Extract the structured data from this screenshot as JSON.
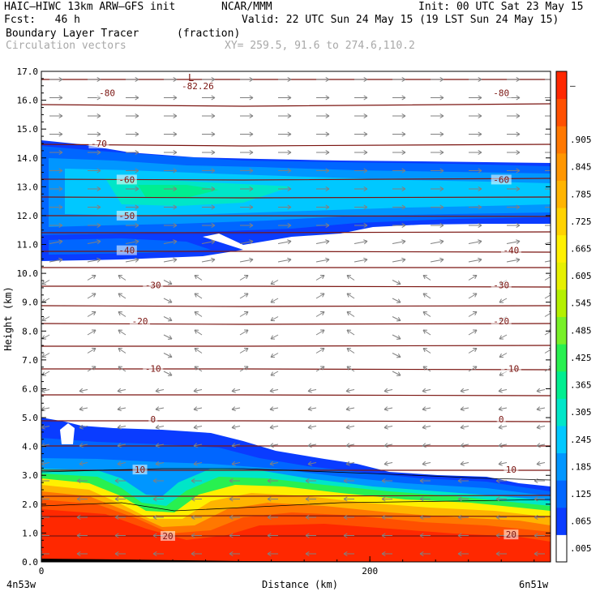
{
  "header": {
    "model": "HAIC–HIWC 13km ARW–GFS init",
    "org": "NCAR/MMM",
    "init": "Init: 00 UTC Sat 23 May 15",
    "fcst": "Fcst:   46 h",
    "valid": "Valid: 22 UTC Sun 24 May 15 (19 LST Sun 24 May 15)",
    "field": "Boundary Layer Tracer",
    "units": "(fraction)",
    "vectors": "Circulation vectors",
    "xy": "XY= 259.5, 91.6 to 274.6,110.2"
  },
  "chart_data": {
    "type": "heatmap",
    "ylabel": "Height (km)",
    "xlabel": "Distance (km)",
    "ylim": [
      0,
      17
    ],
    "xlim": [
      0,
      310
    ],
    "y_ticks": [
      "0.0",
      "1.0",
      "2.0",
      "3.0",
      "4.0",
      "5.0",
      "6.0",
      "7.0",
      "8.0",
      "9.0",
      "10.0",
      "11.0",
      "12.0",
      "13.0",
      "14.0",
      "15.0",
      "16.0",
      "17.0"
    ],
    "x_ticks": [
      {
        "value": 0,
        "label": "0"
      },
      {
        "value": 200,
        "label": "200"
      }
    ],
    "x_end_labels": {
      "left": "4n53w",
      "right": "6n51w"
    },
    "colorbar": {
      "colors": [
        "#ffffff",
        "#0a3cff",
        "#0066ff",
        "#0096ff",
        "#00c8ff",
        "#00e6c8",
        "#00ee90",
        "#28f050",
        "#78f028",
        "#b4f000",
        "#e6f000",
        "#fff000",
        "#ffd200",
        "#ffb400",
        "#ff9600",
        "#ff7800",
        "#ff5000",
        "#ff2800"
      ],
      "labels": [
        ".005",
        ".065",
        ".125",
        ".185",
        ".245",
        ".305",
        ".365",
        ".425",
        ".485",
        ".545",
        ".605",
        ".665",
        ".725",
        ".785",
        ".845",
        ".905",
        "",
        "–"
      ]
    },
    "isotherm_labels": [
      {
        "x": 40,
        "y": 16.25,
        "text": "-80"
      },
      {
        "x": 280,
        "y": 16.25,
        "text": "-80"
      },
      {
        "x": 35,
        "y": 14.5,
        "text": "-70"
      },
      {
        "x": 52,
        "y": 13.25,
        "text": "-60"
      },
      {
        "x": 280,
        "y": 13.25,
        "text": "-60"
      },
      {
        "x": 52,
        "y": 12.0,
        "text": "-50"
      },
      {
        "x": 52,
        "y": 10.8,
        "text": "-40"
      },
      {
        "x": 286,
        "y": 10.8,
        "text": "-40"
      },
      {
        "x": 68,
        "y": 9.6,
        "text": "-30"
      },
      {
        "x": 280,
        "y": 9.6,
        "text": "-30"
      },
      {
        "x": 60,
        "y": 8.35,
        "text": "-20"
      },
      {
        "x": 280,
        "y": 8.35,
        "text": "-20"
      },
      {
        "x": 68,
        "y": 6.7,
        "text": "-10"
      },
      {
        "x": 286,
        "y": 6.7,
        "text": "-10"
      },
      {
        "x": 68,
        "y": 4.95,
        "text": "0"
      },
      {
        "x": 280,
        "y": 4.95,
        "text": "0"
      },
      {
        "x": 60,
        "y": 3.2,
        "text": "10"
      },
      {
        "x": 286,
        "y": 3.2,
        "text": "10"
      },
      {
        "x": 77,
        "y": 0.9,
        "text": "20"
      },
      {
        "x": 286,
        "y": 0.95,
        "text": "20"
      }
    ],
    "min_label": {
      "x": 93,
      "y": 16.6,
      "letter": "L",
      "value": "-82.26"
    }
  }
}
